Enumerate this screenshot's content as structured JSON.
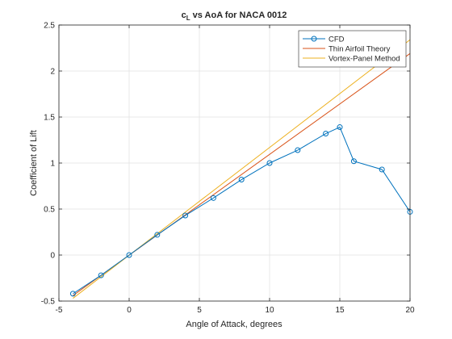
{
  "chart_data": {
    "type": "line",
    "title_main": "c",
    "title_sub": "L",
    "title_rest": " vs AoA for NACA 0012",
    "xlabel": "Angle of Attack, degrees",
    "ylabel": "Coefficient of Lift",
    "xlim": [
      -5,
      20
    ],
    "ylim": [
      -0.5,
      2.5
    ],
    "xticks": [
      -5,
      0,
      5,
      10,
      15,
      20
    ],
    "yticks": [
      -0.5,
      0,
      0.5,
      1,
      1.5,
      2,
      2.5
    ],
    "grid": true,
    "legend_position": "top-right",
    "series": [
      {
        "name": "CFD",
        "color": "#0072BD",
        "marker": "circle",
        "x": [
          -4,
          -2,
          0,
          2,
          4,
          6,
          8,
          10,
          12,
          14,
          15,
          16,
          18,
          20
        ],
        "y": [
          -0.42,
          -0.22,
          0.0,
          0.22,
          0.43,
          0.62,
          0.82,
          1.0,
          1.14,
          1.32,
          1.39,
          1.02,
          0.93,
          0.47
        ]
      },
      {
        "name": "Thin Airfoil Theory",
        "color": "#D95319",
        "marker": "none",
        "x": [
          -4,
          20
        ],
        "y": [
          -0.44,
          2.19
        ]
      },
      {
        "name": "Vortex-Panel Method",
        "color": "#EDB120",
        "marker": "none",
        "x": [
          -4,
          20
        ],
        "y": [
          -0.47,
          2.34
        ]
      }
    ]
  }
}
